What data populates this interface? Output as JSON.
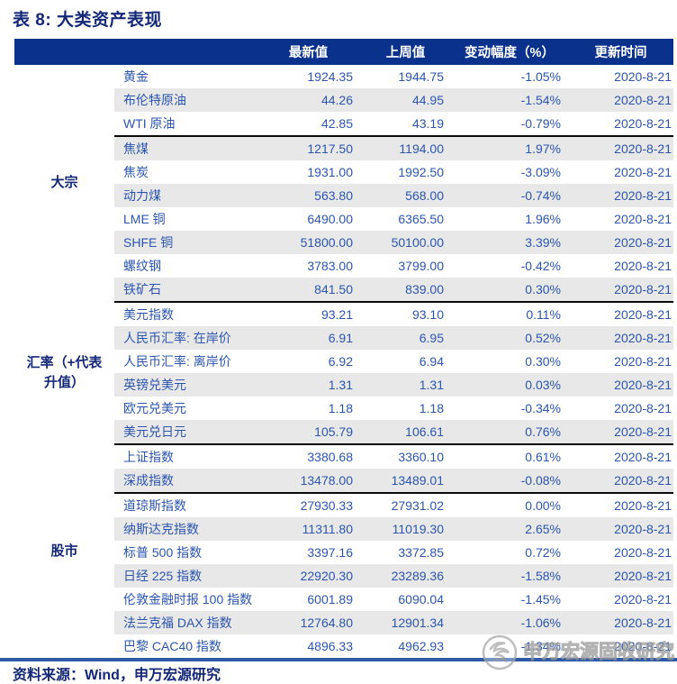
{
  "title": "表 8: 大类资产表现",
  "source_note": "资料来源：Wind，申万宏源研究",
  "watermark": {
    "text": "申万宏源固收研究",
    "logo_icon": "sws-swirl-logo"
  },
  "colors": {
    "header_bg": "#0A328C",
    "header_text": "#FFFFFF",
    "row_text_blue": "#2B55AE",
    "heading_navy": "#142878",
    "row_alt_gray": "#E8E8E8",
    "separator_black": "#0A0A0A",
    "bottom_rule_blue": "#2E5AA8"
  },
  "table": {
    "headers": [
      "最新值",
      "上周值",
      "变动幅度（%）",
      "更新时间"
    ],
    "groups": [
      {
        "key": "commodities",
        "label_lines": [
          "大宗"
        ],
        "rows": [
          {
            "name": "黄金",
            "latest": "1924.35",
            "prev": "1944.75",
            "change": "-1.05%",
            "updated": "2020-8-21"
          },
          {
            "name": "布伦特原油",
            "latest": "44.26",
            "prev": "44.95",
            "change": "-1.54%",
            "updated": "2020-8-21"
          },
          {
            "name": "WTI 原油",
            "latest": "42.85",
            "prev": "43.19",
            "change": "-0.79%",
            "updated": "2020-8-21",
            "sep_after": true
          },
          {
            "name": "焦煤",
            "latest": "1217.50",
            "prev": "1194.00",
            "change": "1.97%",
            "updated": "2020-8-21"
          },
          {
            "name": "焦炭",
            "latest": "1931.00",
            "prev": "1992.50",
            "change": "-3.09%",
            "updated": "2020-8-21"
          },
          {
            "name": "动力煤",
            "latest": "563.80",
            "prev": "568.00",
            "change": "-0.74%",
            "updated": "2020-8-21"
          },
          {
            "name": "LME 铜",
            "latest": "6490.00",
            "prev": "6365.50",
            "change": "1.96%",
            "updated": "2020-8-21"
          },
          {
            "name": "SHFE 铜",
            "latest": "51800.00",
            "prev": "50100.00",
            "change": "3.39%",
            "updated": "2020-8-21"
          },
          {
            "name": "螺纹钢",
            "latest": "3783.00",
            "prev": "3799.00",
            "change": "-0.42%",
            "updated": "2020-8-21"
          },
          {
            "name": "铁矿石",
            "latest": "841.50",
            "prev": "839.00",
            "change": "0.30%",
            "updated": "2020-8-21"
          }
        ]
      },
      {
        "key": "fx",
        "label_lines": [
          "汇率（+代表",
          "升值）"
        ],
        "rows": [
          {
            "name": "美元指数",
            "latest": "93.21",
            "prev": "93.10",
            "change": "0.11%",
            "updated": "2020-8-21"
          },
          {
            "name": "人民币汇率: 在岸价",
            "latest": "6.91",
            "prev": "6.95",
            "change": "0.52%",
            "updated": "2020-8-21"
          },
          {
            "name": "人民币汇率: 离岸价",
            "latest": "6.92",
            "prev": "6.94",
            "change": "0.30%",
            "updated": "2020-8-21"
          },
          {
            "name": "英镑兑美元",
            "latest": "1.31",
            "prev": "1.31",
            "change": "0.03%",
            "updated": "2020-8-21"
          },
          {
            "name": "欧元兑美元",
            "latest": "1.18",
            "prev": "1.18",
            "change": "-0.34%",
            "updated": "2020-8-21"
          },
          {
            "name": "美元兑日元",
            "latest": "105.79",
            "prev": "106.61",
            "change": "0.76%",
            "updated": "2020-8-21"
          }
        ]
      },
      {
        "key": "equities",
        "label_lines": [
          "股市"
        ],
        "rows": [
          {
            "name": "上证指数",
            "latest": "3380.68",
            "prev": "3360.10",
            "change": "0.61%",
            "updated": "2020-8-21"
          },
          {
            "name": "深成指数",
            "latest": "13478.00",
            "prev": "13489.01",
            "change": "-0.08%",
            "updated": "2020-8-21",
            "sep_after": true
          },
          {
            "name": "道琼斯指数",
            "latest": "27930.33",
            "prev": "27931.02",
            "change": "0.00%",
            "updated": "2020-8-21"
          },
          {
            "name": "纳斯达克指数",
            "latest": "11311.80",
            "prev": "11019.30",
            "change": "2.65%",
            "updated": "2020-8-21"
          },
          {
            "name": "标普 500 指数",
            "latest": "3397.16",
            "prev": "3372.85",
            "change": "0.72%",
            "updated": "2020-8-21"
          },
          {
            "name": "日经 225 指数",
            "latest": "22920.30",
            "prev": "23289.36",
            "change": "-1.58%",
            "updated": "2020-8-21"
          },
          {
            "name": "伦敦金融时报 100 指数",
            "latest": "6001.89",
            "prev": "6090.04",
            "change": "-1.45%",
            "updated": "2020-8-21"
          },
          {
            "name": "法兰克福 DAX 指数",
            "latest": "12764.80",
            "prev": "12901.34",
            "change": "-1.06%",
            "updated": "2020-8-21"
          },
          {
            "name": "巴黎 CAC40 指数",
            "latest": "4896.33",
            "prev": "4962.93",
            "change": "-1.34%",
            "updated": "2020-8-21"
          }
        ]
      }
    ]
  }
}
